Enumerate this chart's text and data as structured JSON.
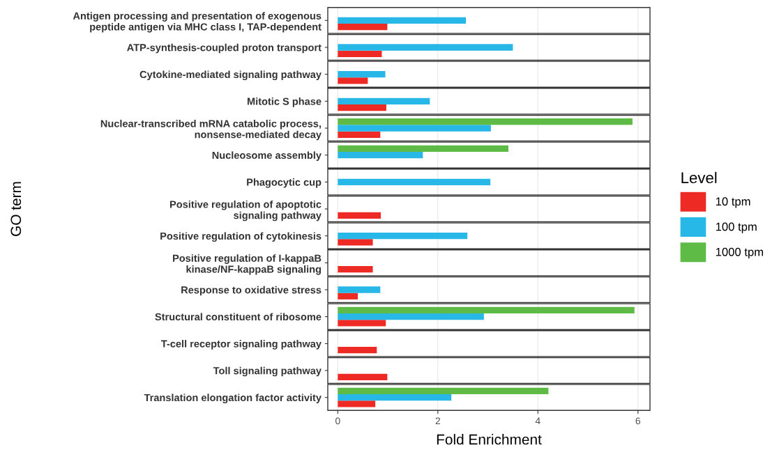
{
  "chart_data": {
    "type": "bar",
    "orientation": "horizontal",
    "xlabel": "Fold Enrichment",
    "ylabel": "GO term",
    "legend_title": "Level",
    "legend": "right",
    "grid": true,
    "categories": [
      "Antigen processing and presentation of exogenous\npeptide antigen via MHC class I, TAP-dependent",
      "ATP-synthesis-coupled proton transport",
      "Cytokine-mediated signaling pathway",
      "Mitotic S phase",
      "Nuclear-transcribed mRNA catabolic process,\nnonsense-mediated decay",
      "Nucleosome assembly",
      "Phagocytic cup",
      "Positive regulation of apoptotic\nsignaling pathway",
      "Positive regulation of cytokinesis",
      "Positive regulation of I-kappaB\nkinase/NF-kappaB signaling",
      "Response to oxidative stress",
      "Structural constituent of ribosome",
      "T-cell receptor signaling pathway",
      "Toll signaling pathway",
      "Translation elongation factor activity"
    ],
    "series": [
      {
        "name": "10 tpm",
        "color": "#ee2a24",
        "values": [
          0.99,
          0.88,
          0.6,
          0.97,
          0.85,
          null,
          null,
          0.86,
          0.7,
          0.7,
          0.4,
          0.96,
          0.78,
          0.99,
          0.75
        ]
      },
      {
        "name": "100 tpm",
        "color": "#28b8e8",
        "values": [
          2.56,
          3.5,
          0.95,
          1.84,
          3.06,
          1.7,
          3.05,
          null,
          2.59,
          null,
          0.85,
          2.92,
          null,
          null,
          2.27
        ]
      },
      {
        "name": "1000 tpm",
        "color": "#5ebb46",
        "values": [
          null,
          null,
          null,
          null,
          5.89,
          3.41,
          null,
          null,
          null,
          null,
          null,
          5.93,
          null,
          null,
          4.21
        ]
      }
    ],
    "xlim": [
      -0.2,
      6.24
    ],
    "xticks": [
      0,
      2,
      4,
      6
    ]
  }
}
